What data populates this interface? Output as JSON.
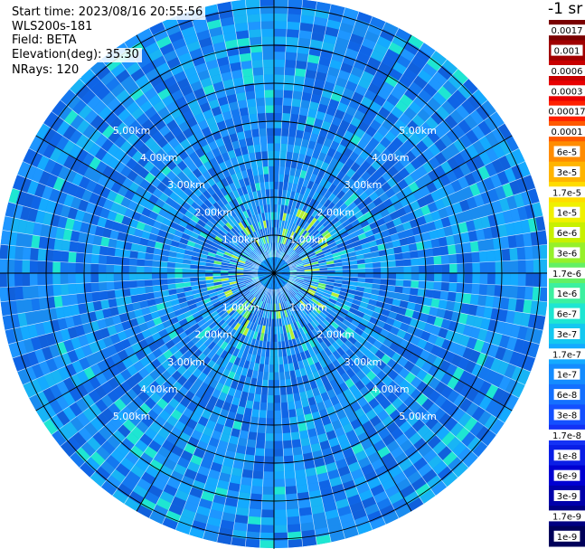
{
  "header": {
    "start_time": "Start time: 2023/08/16 20:55:56",
    "instrument": "WLS200s-181",
    "field": "Field: BETA",
    "elevation": "Elevation(deg): 35.30",
    "nrays": "NRays: 120"
  },
  "colorbar": {
    "unit_label": "-1 sr",
    "labels": [
      "0.0017",
      "0.001",
      "0.0006",
      "0.0003",
      "0.00017",
      "0.0001",
      "6e-5",
      "3e-5",
      "1.7e-5",
      "1e-5",
      "6e-6",
      "3e-6",
      "1.7e-6",
      "1e-6",
      "6e-7",
      "3e-7",
      "1.7e-7",
      "1e-7",
      "6e-8",
      "3e-8",
      "1.7e-8",
      "1e-8",
      "6e-9",
      "3e-9",
      "1.7e-9",
      "1e-9"
    ],
    "colors": [
      "#7a0000",
      "#a00000",
      "#c80000",
      "#e80000",
      "#ff2000",
      "#ff5a00",
      "#ff8c00",
      "#ffb400",
      "#ffdc00",
      "#f0f000",
      "#c8f000",
      "#96f02a",
      "#64f064",
      "#3cf0a0",
      "#1ee6d2",
      "#14c8f0",
      "#14aaff",
      "#148cff",
      "#1470ff",
      "#1450ff",
      "#1432f5",
      "#0a1ee6",
      "#0000d2",
      "#0000aa",
      "#000082",
      "#00005a"
    ]
  },
  "ring_labels": [
    "1.00km",
    "2.00km",
    "3.00km",
    "4.00km",
    "5.00km"
  ]
}
